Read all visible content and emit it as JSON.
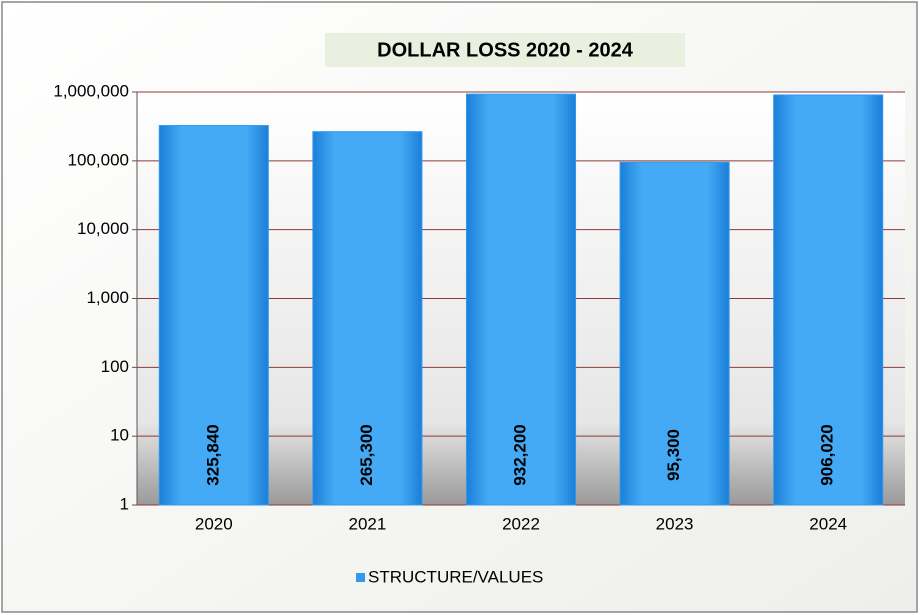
{
  "chart_data": {
    "type": "bar",
    "title": "DOLLAR LOSS 2020 - 2024",
    "categories": [
      "2020",
      "2021",
      "2022",
      "2023",
      "2024"
    ],
    "series": [
      {
        "name": "STRUCTURE/VALUES",
        "color": "#3399ee",
        "values": [
          325840,
          265300,
          932200,
          95300,
          906020
        ],
        "value_labels": [
          "325,840",
          "265,300",
          "932,200",
          "95,300",
          "906,020"
        ]
      }
    ],
    "yscale": "log",
    "ylim": [
      1,
      1000000
    ],
    "yticks": [
      1,
      10,
      100,
      {
        "value": 1000,
        "label": "1,000"
      },
      {
        "value": 10000,
        "label": "10,000"
      },
      {
        "value": 100000,
        "label": "100,000"
      },
      {
        "value": 1000000,
        "label": "1,000,000"
      }
    ],
    "grid": true,
    "legend": "bottom"
  }
}
